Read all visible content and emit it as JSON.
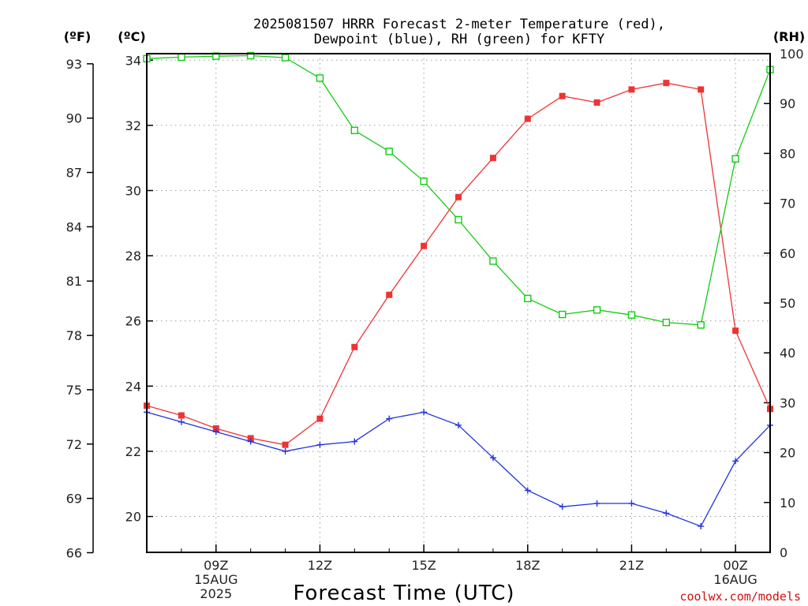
{
  "chart_data": {
    "type": "line",
    "title_line1": "2025081507 HRRR Forecast 2-meter Temperature (red),",
    "title_line2": "Dewpoint (blue), RH (green) for KFTY",
    "xlabel": "Forecast Time (UTC)",
    "credit": "coolwx.com/models",
    "units": {
      "fahrenheit": "(ºF)",
      "celsius": "(ºC)",
      "rh": "(RH)"
    },
    "x_hours": [
      7,
      8,
      9,
      10,
      11,
      12,
      13,
      14,
      15,
      16,
      17,
      18,
      19,
      20,
      21,
      22,
      23,
      24,
      25
    ],
    "xlim": [
      7,
      25
    ],
    "x_ticks": [
      {
        "hour": 9,
        "lines": [
          "09Z",
          "15AUG",
          "2025"
        ]
      },
      {
        "hour": 12,
        "lines": [
          "12Z"
        ]
      },
      {
        "hour": 15,
        "lines": [
          "15Z"
        ]
      },
      {
        "hour": 18,
        "lines": [
          "18Z"
        ]
      },
      {
        "hour": 21,
        "lines": [
          "21Z"
        ]
      },
      {
        "hour": 24,
        "lines": [
          "00Z",
          "16AUG"
        ]
      }
    ],
    "celsius_axis": {
      "ylim": [
        18.9,
        34.2
      ],
      "ticks": [
        "20",
        "22",
        "24",
        "26",
        "28",
        "30",
        "32",
        "34"
      ]
    },
    "fahrenheit_ticks": [
      "66",
      "69",
      "72",
      "75",
      "78",
      "81",
      "84",
      "87",
      "90",
      "93"
    ],
    "rh_axis": {
      "ylim": [
        0,
        100
      ],
      "ticks": [
        "0",
        "10",
        "20",
        "30",
        "40",
        "50",
        "60",
        "70",
        "80",
        "90",
        "100"
      ]
    },
    "grid": true,
    "series": [
      {
        "color": "#ee3333",
        "marker": "filled-square",
        "values": [
          23.4,
          23.1,
          22.7,
          22.4,
          22.2,
          23.0,
          25.2,
          26.8,
          28.3,
          29.8,
          31.0,
          32.2,
          32.9,
          32.7,
          33.1,
          33.3,
          33.1,
          25.7,
          23.3
        ]
      },
      {
        "color": "#2233dd",
        "marker": "plus",
        "values": [
          23.2,
          22.9,
          22.6,
          22.3,
          22.0,
          22.2,
          22.3,
          23.0,
          23.2,
          22.8,
          21.8,
          20.8,
          20.3,
          20.4,
          20.4,
          20.1,
          19.7,
          21.7,
          22.8
        ]
      },
      {
        "color": "#11cc11",
        "marker": "open-square",
        "values": [
          99.0,
          99.3,
          99.5,
          99.6,
          99.2,
          95.1,
          84.6,
          80.4,
          74.4,
          66.7,
          58.4,
          50.9,
          47.7,
          48.6,
          47.6,
          46.1,
          45.6,
          78.9,
          96.8
        ]
      }
    ]
  }
}
